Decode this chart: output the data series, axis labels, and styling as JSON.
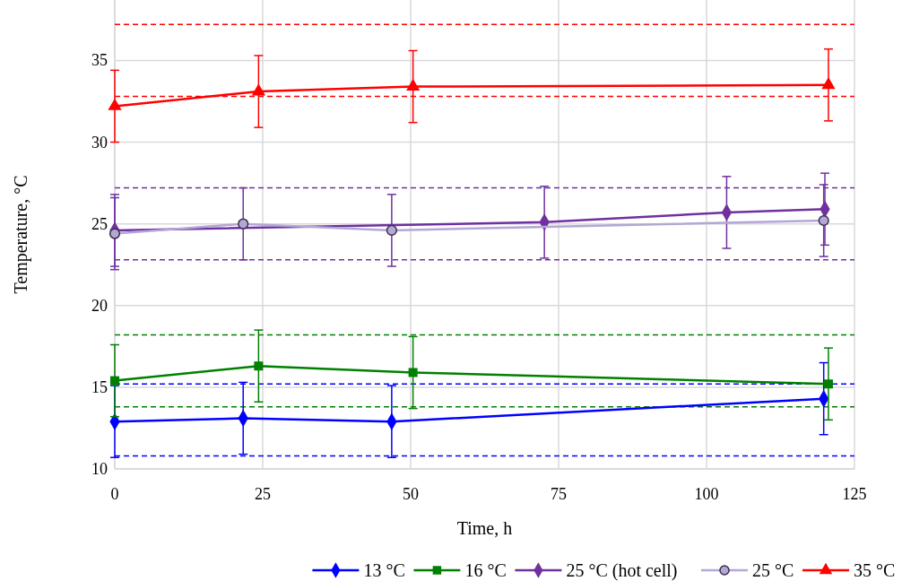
{
  "chart_data": {
    "type": "line",
    "xlabel": "Time, h",
    "ylabel": "Temperature, °C",
    "xlim": [
      0,
      125
    ],
    "ylim": [
      10,
      38.7
    ],
    "xticks": [
      0,
      25,
      50,
      75,
      100,
      125
    ],
    "yticks": [
      10,
      15,
      20,
      25,
      30,
      35
    ],
    "grid": true,
    "legend": "bottom",
    "line_style": "solid",
    "series": [
      {
        "name": "13 °C",
        "color": "#0000ff",
        "marker": "diamond",
        "x": [
          0,
          21.7,
          46.8,
          119.8
        ],
        "values": [
          12.9,
          13.1,
          12.9,
          14.3
        ],
        "errors": [
          2.2,
          2.2,
          2.2,
          2.2
        ]
      },
      {
        "name": "16 °C",
        "color": "#008000",
        "marker": "square",
        "x": [
          0,
          24.3,
          50.4,
          120.6
        ],
        "values": [
          15.4,
          16.3,
          15.9,
          15.2
        ],
        "errors": [
          2.2,
          2.2,
          2.2,
          2.2
        ]
      },
      {
        "name": "25 °C (hot cell)",
        "color": "#7030a0",
        "marker": "diamond",
        "x": [
          0,
          72.6,
          103.4,
          120.0
        ],
        "values": [
          24.6,
          25.1,
          25.7,
          25.9
        ],
        "errors": [
          2.2,
          2.2,
          2.2,
          2.2
        ]
      },
      {
        "name": "25 °C",
        "color": "#b4a7d6",
        "marker": "circle",
        "x": [
          0,
          21.7,
          46.8,
          119.8
        ],
        "values": [
          24.4,
          25.0,
          24.6,
          25.2
        ],
        "errors": [
          2.2,
          2.2,
          2.2,
          2.2
        ]
      },
      {
        "name": "35 °C",
        "color": "#ff0000",
        "marker": "triangle",
        "x": [
          0,
          24.3,
          50.4,
          120.6
        ],
        "values": [
          32.2,
          33.1,
          33.4,
          33.5
        ],
        "errors": [
          2.2,
          2.2,
          2.2,
          2.2
        ]
      }
    ],
    "ref_lines": [
      {
        "axis": "y",
        "value": 37.2,
        "color": "#ff0000",
        "line_style": "dashed"
      },
      {
        "axis": "y",
        "value": 32.8,
        "color": "#ff0000",
        "line_style": "dashed"
      },
      {
        "axis": "y",
        "value": 27.2,
        "color": "#7030a0",
        "line_style": "dashed"
      },
      {
        "axis": "y",
        "value": 22.8,
        "color": "#7030a0",
        "line_style": "dashed"
      },
      {
        "axis": "y",
        "value": 18.2,
        "color": "#008000",
        "line_style": "dashed"
      },
      {
        "axis": "y",
        "value": 13.8,
        "color": "#008000",
        "line_style": "dashed"
      },
      {
        "axis": "y",
        "value": 15.2,
        "color": "#0000ff",
        "line_style": "dashed"
      },
      {
        "axis": "y",
        "value": 10.8,
        "color": "#0000ff",
        "line_style": "dashed"
      }
    ]
  }
}
